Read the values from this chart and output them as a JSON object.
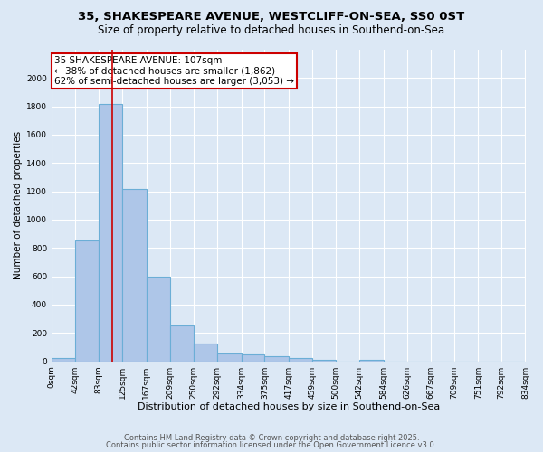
{
  "title1": "35, SHAKESPEARE AVENUE, WESTCLIFF-ON-SEA, SS0 0ST",
  "title2": "Size of property relative to detached houses in Southend-on-Sea",
  "xlabel": "Distribution of detached houses by size in Southend-on-Sea",
  "ylabel": "Number of detached properties",
  "bin_edges": [
    0,
    42,
    83,
    125,
    167,
    209,
    250,
    292,
    334,
    375,
    417,
    459,
    500,
    542,
    584,
    626,
    667,
    709,
    751,
    792,
    834
  ],
  "bin_labels": [
    "0sqm",
    "42sqm",
    "83sqm",
    "125sqm",
    "167sqm",
    "209sqm",
    "250sqm",
    "292sqm",
    "334sqm",
    "375sqm",
    "417sqm",
    "459sqm",
    "500sqm",
    "542sqm",
    "584sqm",
    "626sqm",
    "667sqm",
    "709sqm",
    "751sqm",
    "792sqm",
    "834sqm"
  ],
  "bar_heights": [
    25,
    850,
    1820,
    1220,
    600,
    255,
    125,
    55,
    50,
    35,
    22,
    12,
    0,
    12,
    0,
    0,
    0,
    0,
    0,
    0
  ],
  "bar_color": "#aec6e8",
  "bar_edgecolor": "#6baed6",
  "bar_linewidth": 0.8,
  "vline_x": 107,
  "vline_color": "#cc0000",
  "vline_linewidth": 1.2,
  "annotation_text": "35 SHAKESPEARE AVENUE: 107sqm\n← 38% of detached houses are smaller (1,862)\n62% of semi-detached houses are larger (3,053) →",
  "annotation_box_color": "#ffffff",
  "annotation_box_edgecolor": "#cc0000",
  "ylim": [
    0,
    2200
  ],
  "yticks": [
    0,
    200,
    400,
    600,
    800,
    1000,
    1200,
    1400,
    1600,
    1800,
    2000
  ],
  "background_color": "#dce8f5",
  "grid_color": "#ffffff",
  "footer1": "Contains HM Land Registry data © Crown copyright and database right 2025.",
  "footer2": "Contains public sector information licensed under the Open Government Licence v3.0.",
  "title1_fontsize": 9.5,
  "title2_fontsize": 8.5,
  "xlabel_fontsize": 8,
  "ylabel_fontsize": 7.5,
  "tick_fontsize": 6.5,
  "footer_fontsize": 6,
  "annotation_fontsize": 7.5
}
